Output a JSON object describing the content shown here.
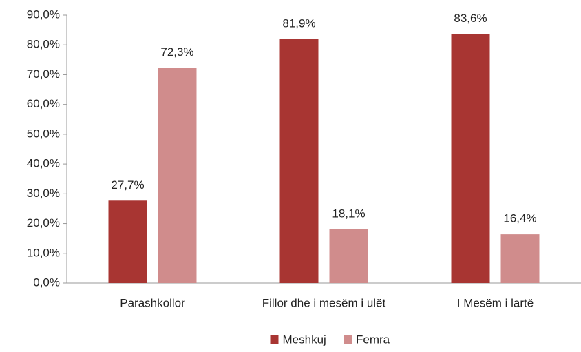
{
  "chart_data": {
    "type": "bar",
    "categories": [
      "Parashkollor",
      "Fillor dhe i mesëm i ulët",
      "I Mesëm i lartë"
    ],
    "series": [
      {
        "name": "Meshkuj",
        "color": "#a83532",
        "values": [
          27.7,
          81.9,
          83.6
        ],
        "value_labels": [
          "27,7%",
          "81,9%",
          "83,6%"
        ]
      },
      {
        "name": "Femra",
        "color": "#d08c8c",
        "values": [
          72.3,
          18.1,
          16.4
        ],
        "value_labels": [
          "72,3%",
          "18,1%",
          "16,4%"
        ]
      }
    ],
    "ylim": [
      0,
      90
    ],
    "yticks": [
      {
        "value": 0,
        "label": "0,0%"
      },
      {
        "value": 10,
        "label": "10,0%"
      },
      {
        "value": 20,
        "label": "20,0%"
      },
      {
        "value": 30,
        "label": "30,0%"
      },
      {
        "value": 40,
        "label": "40,0%"
      },
      {
        "value": 50,
        "label": "50,0%"
      },
      {
        "value": 60,
        "label": "60,0%"
      },
      {
        "value": 70,
        "label": "70,0%"
      },
      {
        "value": 80,
        "label": "80,0%"
      },
      {
        "value": 90,
        "label": "90,0%"
      }
    ],
    "grid": false,
    "legend": "bottom"
  }
}
